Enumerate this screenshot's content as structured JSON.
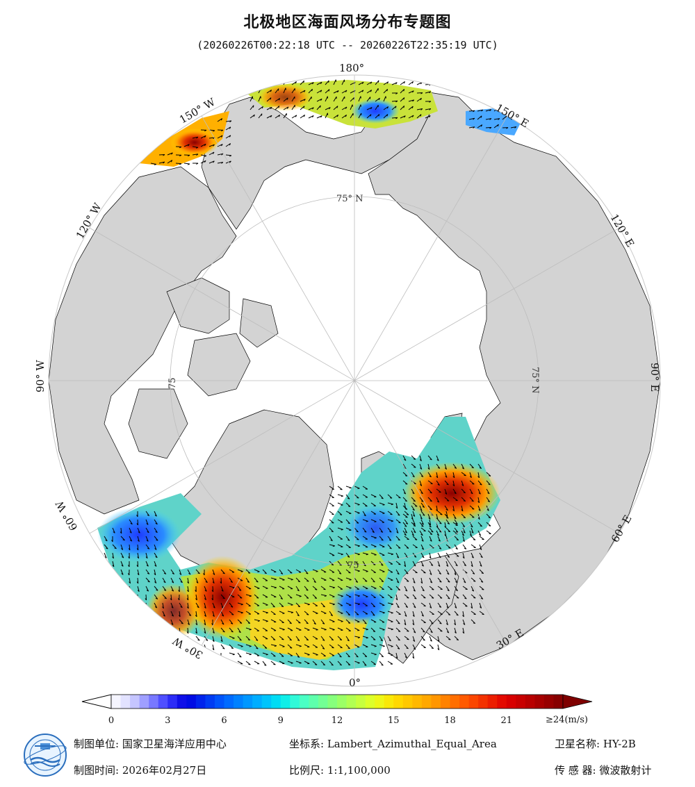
{
  "header": {
    "title": "北极地区海面风场分布专题图",
    "time_range": "(20260226T00:22:18 UTC -- 20260226T22:35:19 UTC)"
  },
  "map": {
    "projection_center": "North Pole",
    "graticule_labels": {
      "lon_180": "180°",
      "lon_150w": "150° W",
      "lon_150e": "150° E",
      "lon_120w": "120° W",
      "lon_120e": "120° E",
      "lon_90w": "90° W",
      "lon_90e": "90° E",
      "lon_60w": "60° W",
      "lon_60e": "60° E",
      "lon_30w": "30° W",
      "lon_30e": "30° E",
      "lon_0": "0°",
      "lat_75n_top": "75° N",
      "lat_75n_right": "75° N",
      "lat_75_left": "75",
      "lat_75_bottom": "75"
    },
    "colors": {
      "land": "#d3d3d3",
      "ice_ocean": "#ffffff",
      "coastline": "#000000",
      "graticule": "#bdbdbd"
    }
  },
  "legend": {
    "unit_label": "≥24(m/s)",
    "ticks": [
      "0",
      "3",
      "6",
      "9",
      "12",
      "15",
      "18",
      "21"
    ],
    "range": [
      0,
      24
    ],
    "under_color": "#ffffff",
    "over_color": "#7f0000"
  },
  "footer": {
    "unit_label": "制图单位:",
    "unit_value": "国家卫星海洋应用中心",
    "crs_label": "坐标系:",
    "crs_value": "Lambert_Azimuthal_Equal_Area",
    "satellite_label": "卫星名称:",
    "satellite_value": "HY-2B",
    "date_label": "制图时间:",
    "date_value": "2026年02月27日",
    "scale_label": "比例尺:",
    "scale_value": "1:1,100,000",
    "sensor_label": "传 感 器:",
    "sensor_value": "微波散射计"
  },
  "icons": {
    "logo": "nsoas-logo-icon"
  }
}
